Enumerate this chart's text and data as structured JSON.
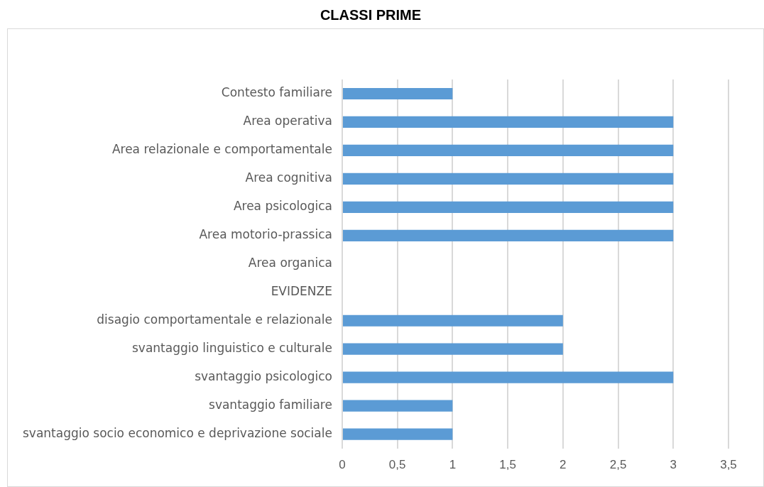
{
  "chart_data": {
    "type": "bar",
    "title": "CLASSI PRIME",
    "orientation": "horizontal",
    "categories": [
      "Contesto familiare",
      "Area operativa",
      "Area relazionale e comportamentale",
      "Area cognitiva",
      "Area psicologica",
      "Area motorio-prassica",
      "Area organica",
      "EVIDENZE",
      "disagio comportamentale e relazionale",
      "svantaggio linguistico e culturale",
      "svantaggio psicologico",
      "svantaggio familiare",
      "svantaggio socio economico e deprivazione sociale"
    ],
    "values": [
      1,
      3,
      3,
      3,
      3,
      3,
      null,
      null,
      2,
      2,
      3,
      1,
      1
    ],
    "color": "#5b9bd5",
    "xlim": [
      0,
      3.5
    ],
    "xticks": [
      0,
      {
        "value": 0.5,
        "label": "0,5"
      },
      1,
      {
        "value": 1.5,
        "label": "1,5"
      },
      2,
      {
        "value": 2.5,
        "label": "2,5"
      },
      3,
      {
        "value": 3.5,
        "label": "3,5"
      }
    ],
    "grid": "x",
    "legend": false
  }
}
